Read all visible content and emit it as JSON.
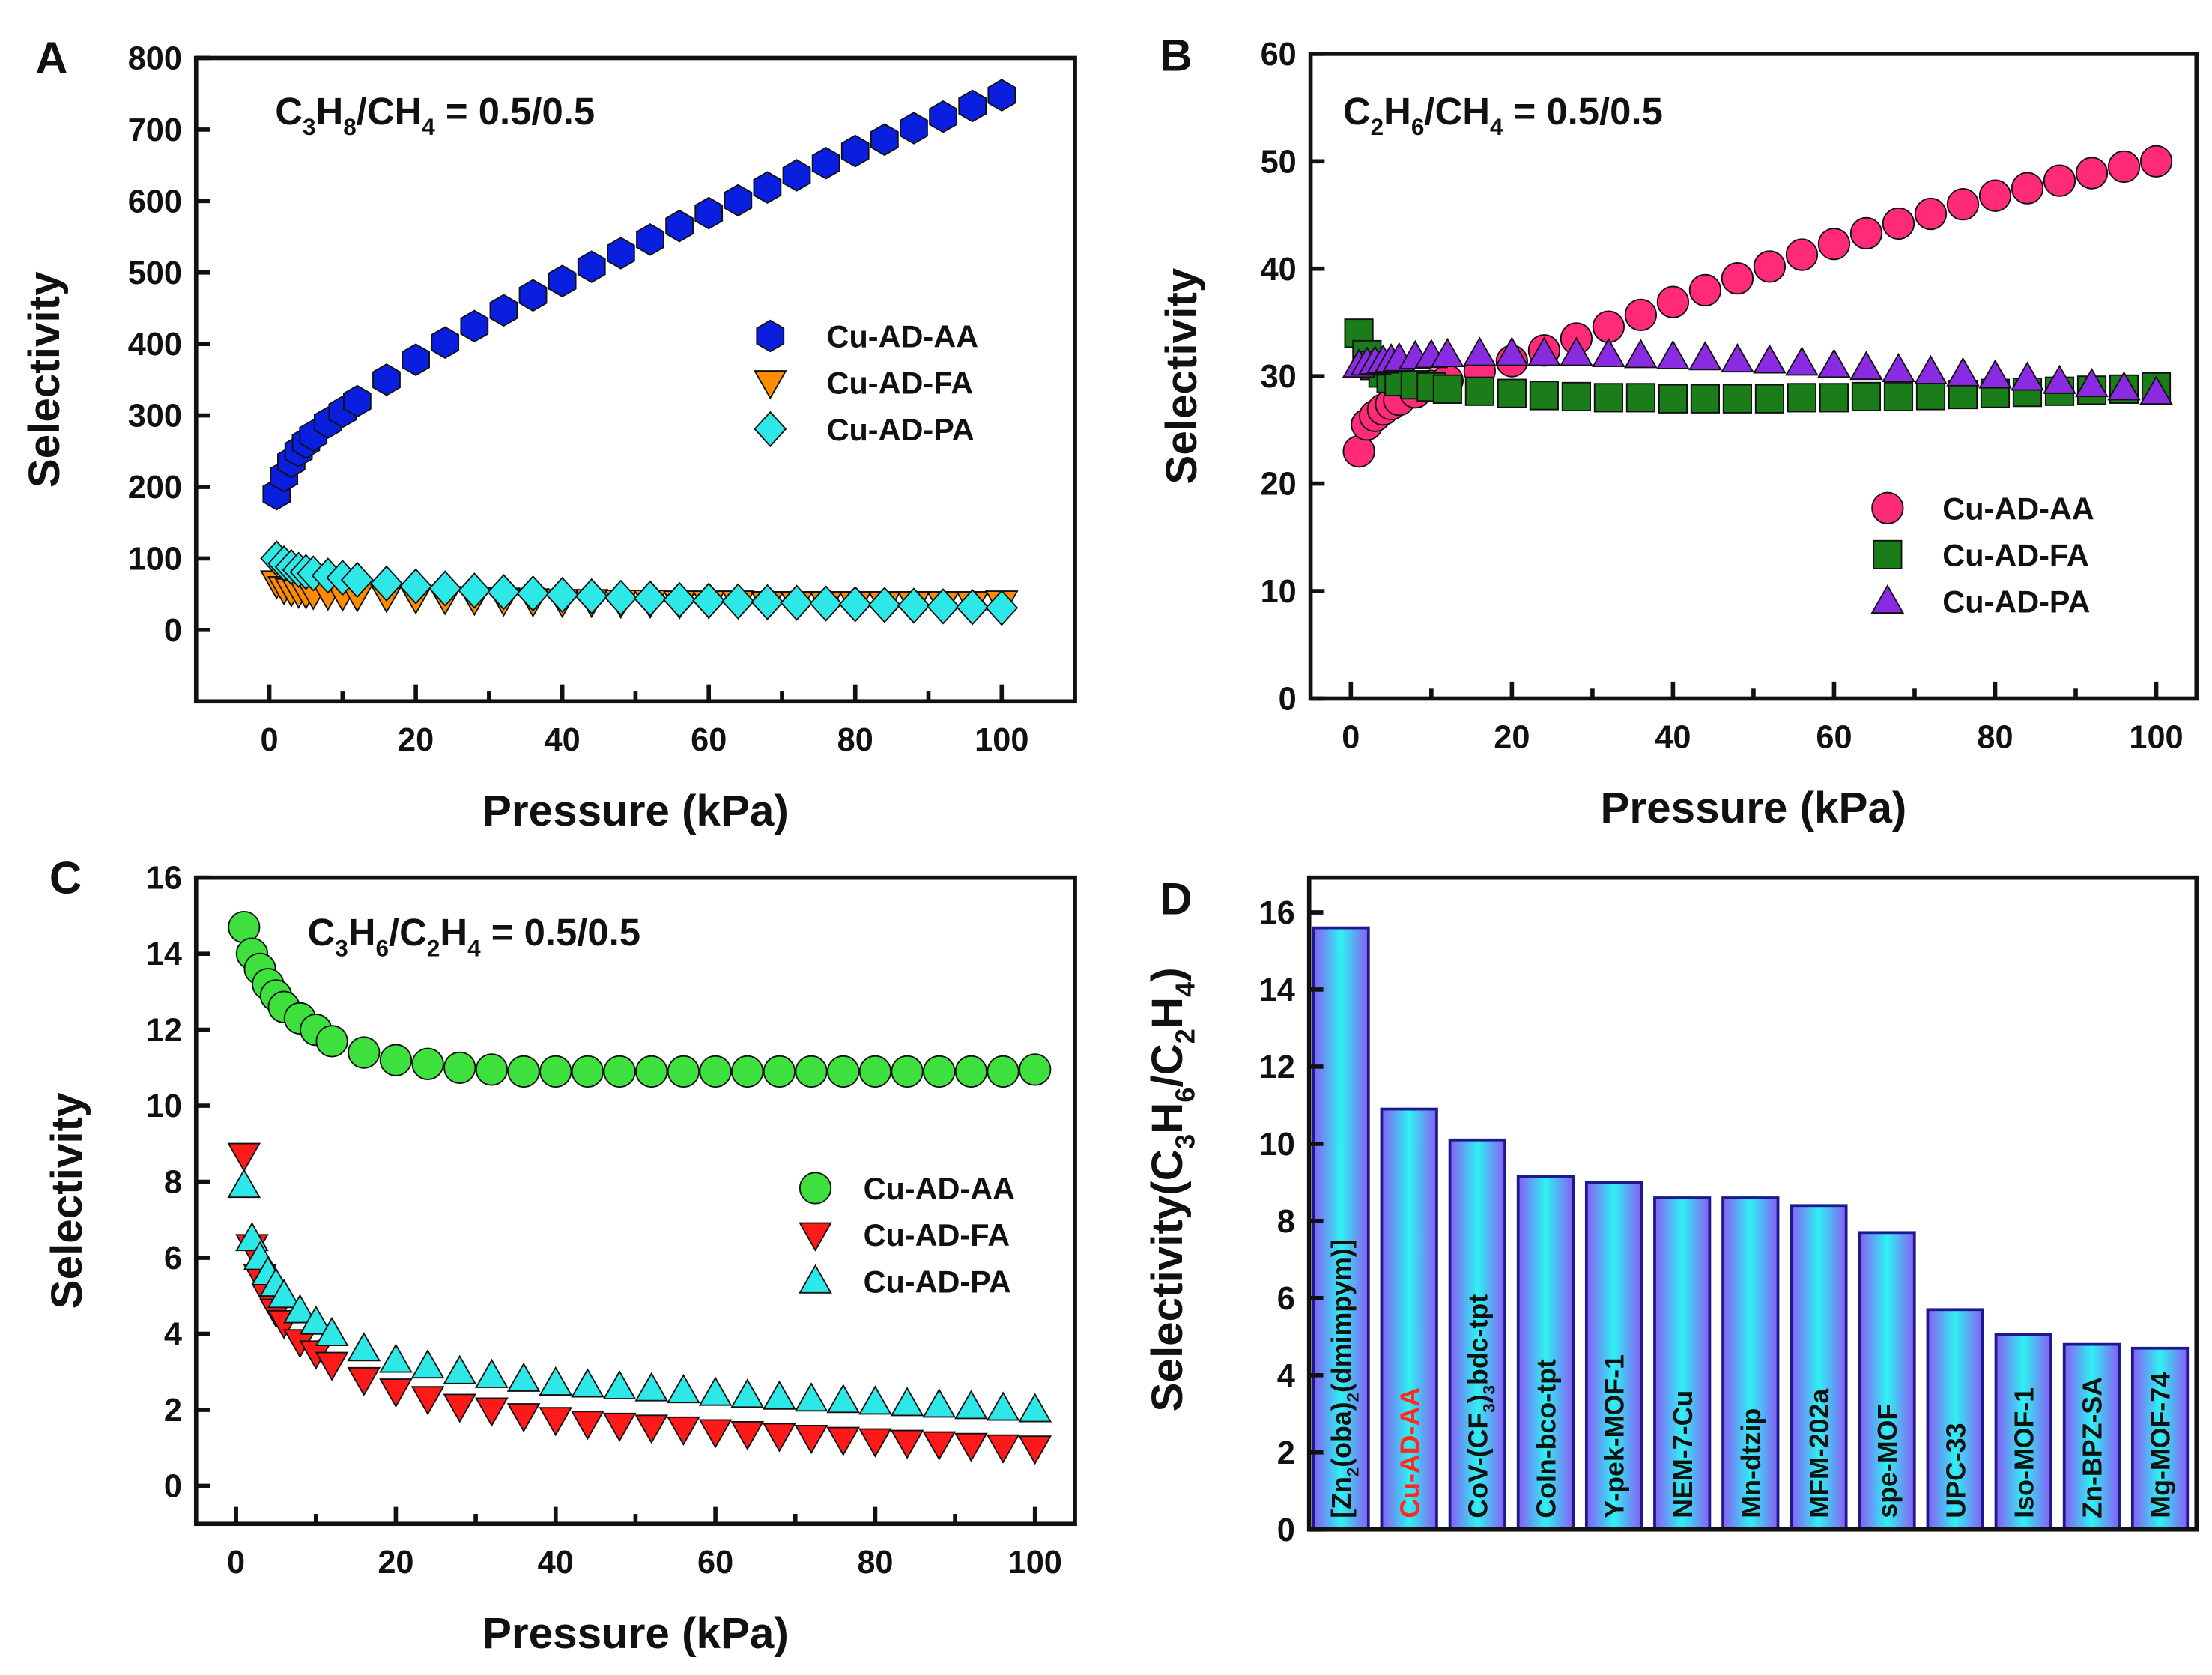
{
  "chart_data": [
    {
      "panel": "A",
      "type": "scatter",
      "title": "C3H8/CH4 = 0.5/0.5",
      "xlabel": "Pressure (kPa)",
      "ylabel": "Selectivity",
      "xlim": [
        -10,
        110
      ],
      "ylim": [
        -100,
        800
      ],
      "xticks": [
        0,
        20,
        40,
        60,
        80,
        100
      ],
      "yticks": [
        0,
        100,
        200,
        300,
        400,
        500,
        600,
        700,
        800
      ],
      "grid": false,
      "legend": "right-middle",
      "x": [
        1,
        2,
        3,
        4,
        5,
        6,
        8,
        10,
        12,
        16,
        20,
        24,
        28,
        32,
        36,
        40,
        44,
        48,
        52,
        56,
        60,
        64,
        68,
        72,
        76,
        80,
        84,
        88,
        92,
        96,
        100
      ],
      "series": [
        {
          "name": "Cu-AD-AA",
          "marker": "hexagon",
          "color": "#0a1ee0",
          "values": [
            190,
            215,
            235,
            250,
            262,
            272,
            290,
            305,
            320,
            350,
            378,
            402,
            425,
            447,
            468,
            488,
            508,
            527,
            546,
            565,
            583,
            601,
            619,
            636,
            653,
            670,
            686,
            702,
            718,
            733,
            748
          ]
        },
        {
          "name": "Cu-AD-FA",
          "marker": "triangle-down",
          "color": "#ff8c00",
          "values": [
            66,
            58,
            55,
            53,
            52,
            51,
            50,
            49,
            48,
            47,
            45,
            44,
            43,
            42,
            41,
            40,
            40,
            39,
            39,
            38,
            38,
            38,
            37,
            37,
            37,
            37,
            37,
            37,
            37,
            37,
            38
          ]
        },
        {
          "name": "Cu-AD-PA",
          "marker": "diamond",
          "color": "#2ee8e8",
          "values": [
            100,
            93,
            88,
            84,
            81,
            79,
            76,
            73,
            70,
            65,
            61,
            58,
            55,
            53,
            51,
            49,
            47,
            45,
            44,
            42,
            41,
            40,
            39,
            38,
            37,
            36,
            35,
            34,
            33,
            32,
            31
          ]
        }
      ]
    },
    {
      "panel": "B",
      "type": "scatter",
      "title": "C2H6/CH4 = 0.5/0.5",
      "xlabel": "Pressure (kPa)",
      "ylabel": "Selectivity",
      "xlim": [
        -5,
        105
      ],
      "ylim": [
        0,
        60
      ],
      "xticks": [
        0,
        20,
        40,
        60,
        80,
        100
      ],
      "yticks": [
        0,
        10,
        20,
        30,
        40,
        50,
        60
      ],
      "grid": false,
      "legend": "bottom-right",
      "x": [
        1,
        2,
        3,
        4,
        5,
        6,
        8,
        10,
        12,
        16,
        20,
        24,
        28,
        32,
        36,
        40,
        44,
        48,
        52,
        56,
        60,
        64,
        68,
        72,
        76,
        80,
        84,
        88,
        92,
        96,
        100
      ],
      "series": [
        {
          "name": "Cu-AD-AA",
          "marker": "circle",
          "color": "#ff2a78",
          "values": [
            23,
            25.5,
            26.3,
            26.9,
            27.4,
            27.8,
            28.5,
            29.1,
            29.6,
            30.5,
            31.4,
            32.4,
            33.5,
            34.6,
            35.7,
            36.9,
            38,
            39.1,
            40.2,
            41.3,
            42.3,
            43.3,
            44.2,
            45.1,
            46,
            46.8,
            47.5,
            48.2,
            48.9,
            49.5,
            50
          ]
        },
        {
          "name": "Cu-AD-FA",
          "marker": "square",
          "color": "#1a7d1a",
          "values": [
            34,
            32,
            31,
            30.3,
            29.8,
            29.5,
            29.2,
            29,
            28.8,
            28.6,
            28.4,
            28.2,
            28.1,
            28,
            28,
            27.9,
            27.9,
            27.9,
            27.9,
            28,
            28,
            28.1,
            28.1,
            28.2,
            28.3,
            28.4,
            28.5,
            28.6,
            28.7,
            28.8,
            29
          ]
        },
        {
          "name": "Cu-AD-PA",
          "marker": "triangle-up",
          "color": "#8a2be2",
          "values": [
            31,
            31.2,
            31.3,
            31.4,
            31.5,
            31.6,
            31.8,
            31.9,
            32,
            32.1,
            32.1,
            32.1,
            32.1,
            32,
            31.9,
            31.8,
            31.7,
            31.5,
            31.4,
            31.2,
            31,
            30.8,
            30.6,
            30.4,
            30.2,
            30,
            29.8,
            29.5,
            29.2,
            28.9,
            28.5
          ]
        }
      ]
    },
    {
      "panel": "C",
      "type": "scatter",
      "title": "C3H6/C2H4 = 0.5/0.5",
      "xlabel": "Pressure (kPa)",
      "ylabel": "Selectivity",
      "xlim": [
        -5,
        105
      ],
      "ylim": [
        -1,
        16
      ],
      "xticks": [
        0,
        20,
        40,
        60,
        80,
        100
      ],
      "yticks": [
        0,
        2,
        4,
        6,
        8,
        10,
        12,
        14,
        16
      ],
      "grid": false,
      "legend": "right-middle",
      "x": [
        1,
        2,
        3,
        4,
        5,
        6,
        8,
        10,
        12,
        16,
        20,
        24,
        28,
        32,
        36,
        40,
        44,
        48,
        52,
        56,
        60,
        64,
        68,
        72,
        76,
        80,
        84,
        88,
        92,
        96,
        100
      ],
      "series": [
        {
          "name": "Cu-AD-AA",
          "marker": "circle",
          "color": "#3ee03e",
          "values": [
            14.7,
            14.0,
            13.6,
            13.2,
            12.9,
            12.6,
            12.3,
            12.0,
            11.7,
            11.4,
            11.2,
            11.1,
            11.0,
            10.95,
            10.9,
            10.9,
            10.9,
            10.9,
            10.9,
            10.9,
            10.9,
            10.9,
            10.9,
            10.9,
            10.9,
            10.9,
            10.9,
            10.9,
            10.9,
            10.9,
            10.95
          ]
        },
        {
          "name": "Cu-AD-FA",
          "marker": "triangle-down",
          "color": "#ff1a1a",
          "values": [
            8.7,
            6.3,
            5.5,
            5.0,
            4.6,
            4.3,
            3.8,
            3.5,
            3.2,
            2.8,
            2.5,
            2.3,
            2.1,
            2.0,
            1.85,
            1.75,
            1.65,
            1.6,
            1.55,
            1.5,
            1.43,
            1.38,
            1.33,
            1.28,
            1.23,
            1.19,
            1.15,
            1.11,
            1.07,
            1.03,
            1.0
          ]
        },
        {
          "name": "Cu-AD-PA",
          "marker": "triangle-up",
          "color": "#2ee8e8",
          "values": [
            7.9,
            6.5,
            6.0,
            5.6,
            5.3,
            5.0,
            4.6,
            4.3,
            4.0,
            3.6,
            3.3,
            3.15,
            3.0,
            2.9,
            2.8,
            2.7,
            2.65,
            2.6,
            2.55,
            2.5,
            2.43,
            2.38,
            2.33,
            2.28,
            2.24,
            2.2,
            2.16,
            2.12,
            2.08,
            2.04,
            2.0
          ]
        }
      ]
    },
    {
      "panel": "D",
      "type": "bar",
      "ylabel": "Selectivity(C3H6/C2H4)",
      "ylim": [
        0,
        16.9
      ],
      "yticks": [
        0,
        2,
        4,
        6,
        8,
        10,
        12,
        14,
        16
      ],
      "grid": false,
      "highlight_color": "#ff2a1a",
      "bar_colors": {
        "edge": "#8a5cf6",
        "center": "#2ef2f2",
        "outline": "#1a1a8c"
      },
      "categories": [
        "[Zn2(oba)2(dmimpym)]",
        "Cu-AD-AA",
        "CoV-(CF3)3bdc-tpt",
        "CoIn-bco-tpt",
        "Y-pek-MOF-1",
        "NEM-7-Cu",
        "Mn-dtzip",
        "MFM-202a",
        "spe-MOF",
        "UPC-33",
        "Iso-MOF-1",
        "Zn-BPZ-SA",
        "Mg-MOF-74"
      ],
      "values": [
        15.6,
        10.9,
        10.1,
        9.15,
        9.0,
        8.6,
        8.6,
        8.4,
        7.7,
        5.7,
        5.05,
        4.8,
        4.7
      ],
      "highlight": [
        "Cu-AD-AA"
      ]
    }
  ]
}
